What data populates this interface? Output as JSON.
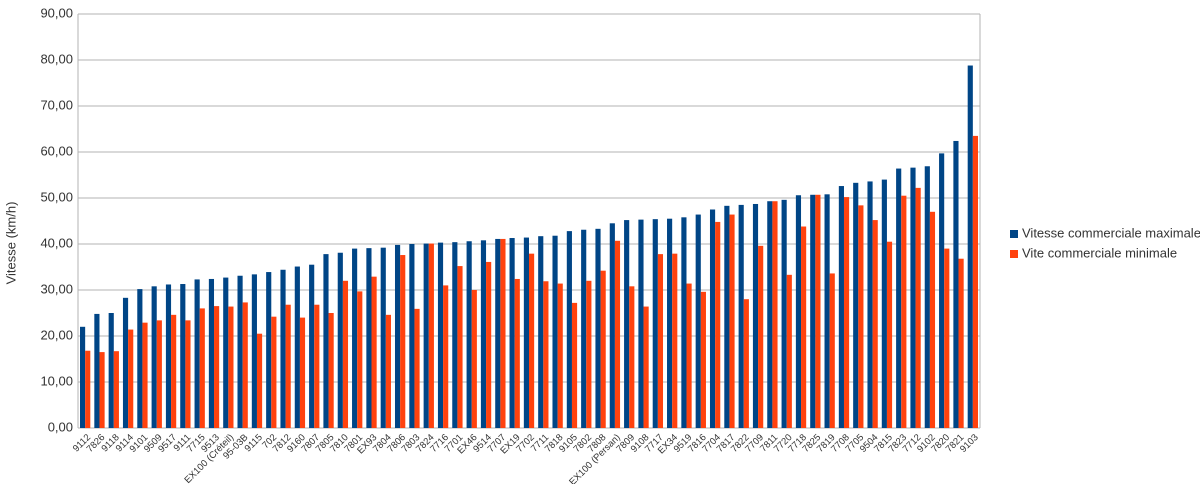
{
  "chart_data": {
    "type": "bar",
    "y_label": "Vitesse (km/h)",
    "categories": [
      "9112",
      "7826",
      "9118",
      "9114",
      "9101",
      "9509",
      "9517",
      "9111",
      "7715",
      "9513",
      "EX100 (Créteil)",
      "95-03B",
      "9115",
      "702",
      "7812",
      "9160",
      "7807",
      "7805",
      "7810",
      "7801",
      "EX93",
      "7804",
      "7806",
      "7803",
      "7824",
      "7716",
      "7701",
      "EX46",
      "9514",
      "7707",
      "EX19",
      "7702",
      "7711",
      "7818",
      "9105",
      "7802",
      "7808",
      "EX100 (Persan)",
      "7809",
      "9108",
      "7717",
      "EX34",
      "9519",
      "7816",
      "7704",
      "7817",
      "7822",
      "7709",
      "7811",
      "7720",
      "7718",
      "7825",
      "7819",
      "7708",
      "7705",
      "9504",
      "7815",
      "7823",
      "7712",
      "9102",
      "7820",
      "7821",
      "9103"
    ],
    "series": [
      {
        "name": "Vitesse commerciale maximale",
        "color": "#004586",
        "values": [
          22,
          24.8,
          25,
          28.3,
          30.2,
          30.8,
          31.2,
          31.3,
          32.3,
          32.4,
          32.7,
          33.1,
          33.4,
          33.9,
          34.4,
          35.1,
          35.5,
          37.8,
          38.1,
          39,
          39.1,
          39.2,
          39.8,
          40,
          40.1,
          40.3,
          40.4,
          40.6,
          40.8,
          41.1,
          41.3,
          41.4,
          41.7,
          41.8,
          42.8,
          43.1,
          43.3,
          44.5,
          45.2,
          45.3,
          45.4,
          45.5,
          45.8,
          46.4,
          47.5,
          48.3,
          48.5,
          48.7,
          49.3,
          49.6,
          50.6,
          50.7,
          50.8,
          52.6,
          53.3,
          53.6,
          54,
          56.4,
          56.6,
          56.9,
          59.7,
          62.4,
          78.8
        ]
      },
      {
        "name": "Vite commerciale minimale",
        "color": "#ff420e",
        "values": [
          16.8,
          16.5,
          16.7,
          21.4,
          22.9,
          23.4,
          24.6,
          23.4,
          26,
          26.5,
          26.4,
          27.3,
          20.5,
          24.2,
          26.8,
          24,
          26.8,
          25,
          32,
          29.7,
          32.9,
          24.6,
          37.6,
          25.9,
          40.1,
          31,
          35.2,
          30,
          36.1,
          41.1,
          32.4,
          37.9,
          31.9,
          31.4,
          27.2,
          32,
          34.2,
          40.7,
          30.8,
          26.4,
          37.8,
          37.9,
          31.4,
          29.6,
          44.8,
          46.4,
          28,
          39.6,
          49.3,
          33.3,
          43.8,
          50.7,
          33.6,
          50.2,
          48.4,
          45.2,
          40.5,
          50.5,
          52.2,
          47,
          39,
          36.8,
          63.5
        ]
      }
    ],
    "ylim": [
      0,
      90
    ],
    "yticks": [
      {
        "value": 0,
        "label": "0,00"
      },
      {
        "value": 10,
        "label": "10,00"
      },
      {
        "value": 20,
        "label": "20,00"
      },
      {
        "value": 30,
        "label": "30,00"
      },
      {
        "value": 40,
        "label": "40,00"
      },
      {
        "value": 50,
        "label": "50,00"
      },
      {
        "value": 60,
        "label": "60,00"
      },
      {
        "value": 70,
        "label": "70,00"
      },
      {
        "value": 80,
        "label": "80,00"
      },
      {
        "value": 90,
        "label": "90,00"
      }
    ],
    "grid": true,
    "legend": "right"
  }
}
